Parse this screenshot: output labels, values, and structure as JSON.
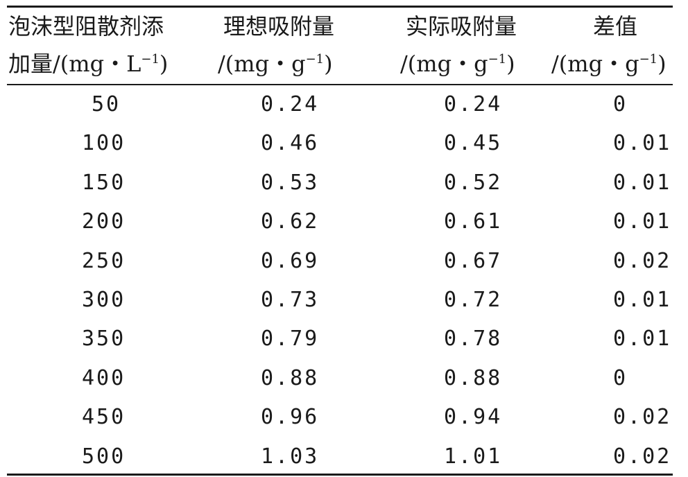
{
  "table": {
    "headers": [
      {
        "line1": "泡沫型阻散剂添",
        "line2_prefix": "加量/(mg・L",
        "sup": "−1",
        "line2_suffix": ")"
      },
      {
        "line1": "理想吸附量",
        "line2_prefix": "/(mg・g",
        "sup": "−1",
        "line2_suffix": ")"
      },
      {
        "line1": "实际吸附量",
        "line2_prefix": "/(mg・g",
        "sup": "−1",
        "line2_suffix": ")"
      },
      {
        "line1": "差值",
        "line2_prefix": "/(mg・g",
        "sup": "−1",
        "line2_suffix": ")"
      }
    ],
    "rows": [
      [
        "50",
        "0.24",
        "0.24",
        "0"
      ],
      [
        "100",
        "0.46",
        "0.45",
        "0.01"
      ],
      [
        "150",
        "0.53",
        "0.52",
        "0.01"
      ],
      [
        "200",
        "0.62",
        "0.61",
        "0.01"
      ],
      [
        "250",
        "0.69",
        "0.67",
        "0.02"
      ],
      [
        "300",
        "0.73",
        "0.72",
        "0.01"
      ],
      [
        "350",
        "0.79",
        "0.78",
        "0.01"
      ],
      [
        "400",
        "0.88",
        "0.88",
        "0"
      ],
      [
        "450",
        "0.96",
        "0.94",
        "0.02"
      ],
      [
        "500",
        "1.03",
        "1.01",
        "0.02"
      ]
    ]
  }
}
